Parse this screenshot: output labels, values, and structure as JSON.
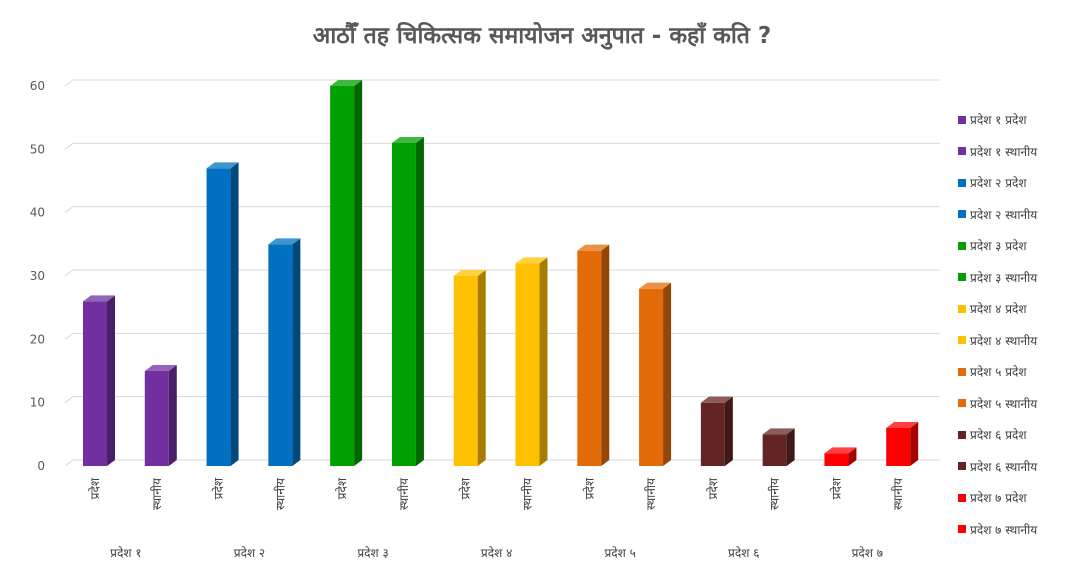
{
  "chart_data": {
    "type": "bar",
    "title": "आठौँ तह चिकित्सक समायोजन अनुपात - कहाँ कति ?",
    "categories": [
      "प्रदेश",
      "स्थानीय",
      "प्रदेश",
      "स्थानीय",
      "प्रदेश",
      "स्थानीय",
      "प्रदेश",
      "स्थानीय",
      "प्रदेश",
      "स्थानीय",
      "प्रदेश",
      "स्थानीय",
      "प्रदेश",
      "स्थानीय"
    ],
    "groups": [
      "प्रदेश १",
      "प्रदेश २",
      "प्रदेश ३",
      "प्रदेश ४",
      "प्रदेश ५",
      "प्रदेश ६",
      "प्रदेश ७"
    ],
    "series": [
      {
        "name": "प्रदेश १ प्रदेश",
        "value": 26,
        "color": "#7030A0"
      },
      {
        "name": "प्रदेश १ स्थानीय",
        "value": 15,
        "color": "#7030A0"
      },
      {
        "name": "प्रदेश २ प्रदेश",
        "value": 47,
        "color": "#0070C0"
      },
      {
        "name": "प्रदेश २ स्थानीय",
        "value": 35,
        "color": "#0070C0"
      },
      {
        "name": "प्रदेश ३ प्रदेश",
        "value": 60,
        "color": "#00A000"
      },
      {
        "name": "प्रदेश ३ स्थानीय",
        "value": 51,
        "color": "#00A000"
      },
      {
        "name": "प्रदेश ४ प्रदेश",
        "value": 30,
        "color": "#FFC000"
      },
      {
        "name": "प्रदेश ४ स्थानीय",
        "value": 32,
        "color": "#FFC000"
      },
      {
        "name": "प्रदेश ५ प्रदेश",
        "value": 34,
        "color": "#E36C09"
      },
      {
        "name": "प्रदेश ५ स्थानीय",
        "value": 28,
        "color": "#E36C09"
      },
      {
        "name": "प्रदेश ६ प्रदेश",
        "value": 10,
        "color": "#632523"
      },
      {
        "name": "प्रदेश ६ स्थानीय",
        "value": 5,
        "color": "#632523"
      },
      {
        "name": "प्रदेश ७ प्रदेश",
        "value": 2,
        "color": "#FF0000"
      },
      {
        "name": "प्रदेश ७ स्थानीय",
        "value": 6,
        "color": "#FF0000"
      }
    ],
    "ylim": [
      0,
      60
    ],
    "yticks": [
      "0",
      "10",
      "20",
      "30",
      "40",
      "50",
      "60"
    ],
    "grid": true,
    "legend_position": "right",
    "xlabel": "",
    "ylabel": ""
  }
}
